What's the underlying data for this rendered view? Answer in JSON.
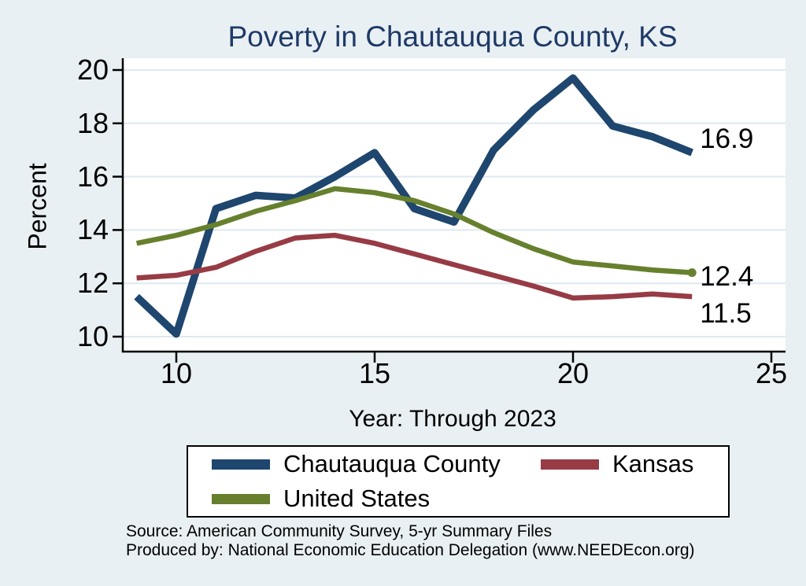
{
  "chart_data": {
    "type": "line",
    "title": "Poverty in Chautauqua County, KS",
    "xlabel": "Year: Through 2023",
    "ylabel": "Percent",
    "x": [
      9,
      10,
      11,
      12,
      13,
      14,
      15,
      16,
      17,
      18,
      19,
      20,
      21,
      22,
      23
    ],
    "x_ticks": [
      10,
      15,
      20,
      25
    ],
    "y_ticks": [
      10,
      12,
      14,
      16,
      18,
      20
    ],
    "xlim": [
      8.6,
      25.4
    ],
    "ylim": [
      9.45,
      20.35
    ],
    "grid": "horizontal",
    "legend_position": "bottom",
    "series": [
      {
        "name": "Chautauqua County",
        "color": "#1e466e",
        "width": 9.5,
        "values": [
          11.5,
          10.1,
          14.8,
          15.3,
          15.2,
          16.0,
          16.9,
          14.8,
          14.3,
          17.0,
          18.5,
          19.7,
          17.9,
          17.5,
          16.9
        ],
        "end_label": "16.9",
        "end_marker": false
      },
      {
        "name": "Kansas",
        "color": "#973b45",
        "width": 6.5,
        "values": [
          12.2,
          12.3,
          12.6,
          13.2,
          13.7,
          13.8,
          13.5,
          13.1,
          12.7,
          12.3,
          11.9,
          11.45,
          11.5,
          11.6,
          11.5
        ],
        "end_label": "11.5",
        "end_marker": false
      },
      {
        "name": "United States",
        "color": "#66802d",
        "width": 6.5,
        "values": [
          13.5,
          13.8,
          14.2,
          14.7,
          15.1,
          15.55,
          15.4,
          15.1,
          14.6,
          13.9,
          13.3,
          12.8,
          12.65,
          12.5,
          12.4
        ],
        "end_label": "12.4",
        "end_marker": true
      }
    ],
    "colors": {
      "background": "#e9f0f3",
      "plot_background": "#ffffff",
      "gridline": "#dde9f0",
      "axis": "#000000",
      "title": "#1f3a67"
    }
  },
  "footer": {
    "source": "Source: American Community Survey, 5-yr Summary Files",
    "produced_by": "Produced by: National Economic Education Delegation (www.NEEDEcon.org)"
  }
}
